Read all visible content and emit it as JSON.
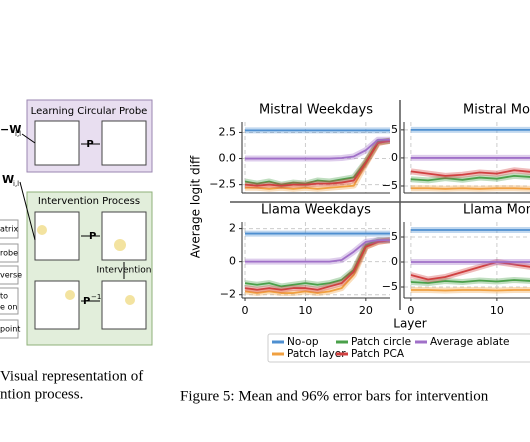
{
  "figure4": {
    "probe_title": "Learning Circular Probe",
    "intervention_title": "Intervention Process",
    "side_labels": [
      "−W",
      "i,l",
      "W",
      "i,l",
      "atrix",
      "robe",
      "verse",
      "to",
      "e on",
      "point"
    ],
    "probe_arrow": "P",
    "project_arrow": "P",
    "inverse_arrow": "P",
    "inverse_sup": "−1",
    "intervention_label": "Intervention",
    "caption": [
      "Visual representation of",
      "ntion process."
    ]
  },
  "figure5": {
    "y_label": "Average logit diff",
    "x_label": "Layer",
    "caption": "Figure 5: Mean and 96% error bars for intervention"
  },
  "chart_data": [
    {
      "type": "line",
      "title": "Mistral Weekdays",
      "x": [
        0,
        2,
        4,
        6,
        8,
        10,
        12,
        14,
        16,
        18,
        20,
        22,
        24
      ],
      "xlim": [
        -0.5,
        24
      ],
      "xticks": [
        0,
        10,
        20
      ],
      "show_xtick_labels": false,
      "ylim": [
        -3.3,
        3.5
      ],
      "yticks": [
        2.5,
        {
          "value": 0,
          "label": "0.0"
        },
        {
          "value": -2.5,
          "label": "−2.5"
        }
      ],
      "grid": true,
      "series": [
        {
          "name": "No-op",
          "color": "#4e8fd0",
          "values": [
            2.7,
            2.7,
            2.7,
            2.7,
            2.7,
            2.7,
            2.7,
            2.7,
            2.7,
            2.7,
            2.7,
            2.7,
            2.7
          ]
        },
        {
          "name": "Patch layer",
          "color": "#f0a040",
          "values": [
            -2.8,
            -2.8,
            -2.9,
            -2.8,
            -2.9,
            -2.8,
            -2.9,
            -2.8,
            -2.7,
            -2.6,
            -0.5,
            1.5,
            1.7
          ]
        },
        {
          "name": "Patch circle",
          "color": "#4aa04a",
          "values": [
            -2.2,
            -2.4,
            -2.2,
            -2.5,
            -2.3,
            -2.4,
            -2.1,
            -2.2,
            -2.0,
            -1.8,
            -0.3,
            1.6,
            1.7
          ]
        },
        {
          "name": "Patch PCA",
          "color": "#d04040",
          "values": [
            -2.5,
            -2.6,
            -2.5,
            -2.6,
            -2.5,
            -2.5,
            -2.4,
            -2.4,
            -2.3,
            -2.1,
            -0.4,
            1.5,
            1.7
          ]
        },
        {
          "name": "Average ablate",
          "color": "#a070c8",
          "values": [
            0,
            0,
            0,
            0,
            0,
            0,
            0,
            0,
            0.05,
            0.2,
            0.8,
            1.8,
            1.8
          ]
        }
      ]
    },
    {
      "type": "line",
      "title": "Mistral Months",
      "x": [
        0,
        2,
        4,
        6,
        8,
        10,
        12,
        14
      ],
      "xlim": [
        -0.8,
        13.85
      ],
      "xticks": [
        0,
        10
      ],
      "show_xtick_labels": false,
      "ylim": [
        -6.25,
        6.4
      ],
      "yticks": [
        5,
        0,
        {
          "value": -5,
          "label": "−5"
        }
      ],
      "grid": true,
      "series": [
        {
          "name": "No-op",
          "color": "#4e8fd0",
          "values": [
            5,
            5,
            5,
            5,
            5,
            5,
            5,
            5
          ]
        },
        {
          "name": "Patch layer",
          "color": "#f0a040",
          "values": [
            -5.4,
            -5.4,
            -5.5,
            -5.4,
            -5.5,
            -5.4,
            -5.4,
            -5.5
          ]
        },
        {
          "name": "Patch circle",
          "color": "#4aa04a",
          "values": [
            -3.8,
            -4,
            -3.6,
            -3.9,
            -3.5,
            -3.7,
            -3.2,
            -3.4
          ]
        },
        {
          "name": "Patch PCA",
          "color": "#d04040",
          "values": [
            -2.4,
            -2.8,
            -3.2,
            -3,
            -2.6,
            -2.8,
            -2.2,
            -2.5
          ]
        },
        {
          "name": "Average ablate",
          "color": "#a070c8",
          "values": [
            0,
            0,
            0,
            0,
            0,
            0,
            0,
            0
          ]
        }
      ]
    },
    {
      "type": "line",
      "title": "Llama Weekdays",
      "x": [
        0,
        2,
        4,
        6,
        8,
        10,
        12,
        14,
        16,
        18,
        20,
        22,
        24
      ],
      "xlim": [
        -0.5,
        24
      ],
      "xticks": [
        0,
        10,
        20
      ],
      "show_xtick_labels": true,
      "ylim": [
        -2.2,
        2.4
      ],
      "yticks": [
        2,
        0,
        {
          "value": -2,
          "label": "−2"
        }
      ],
      "grid": true,
      "series": [
        {
          "name": "No-op",
          "color": "#4e8fd0",
          "values": [
            1.7,
            1.7,
            1.7,
            1.7,
            1.7,
            1.7,
            1.7,
            1.7,
            1.7,
            1.7,
            1.7,
            1.7,
            1.7
          ]
        },
        {
          "name": "Patch layer",
          "color": "#f0a040",
          "values": [
            -1.8,
            -1.9,
            -1.8,
            -1.9,
            -1.9,
            -1.8,
            -1.9,
            -1.8,
            -1.6,
            -0.8,
            0.9,
            1.2,
            1.3
          ]
        },
        {
          "name": "Patch circle",
          "color": "#4aa04a",
          "values": [
            -1.3,
            -1.4,
            -1.3,
            -1.5,
            -1.4,
            -1.3,
            -1.4,
            -1.3,
            -1.1,
            -0.5,
            1.0,
            1.3,
            1.3
          ]
        },
        {
          "name": "Patch PCA",
          "color": "#d04040",
          "values": [
            -1.6,
            -1.7,
            -1.6,
            -1.7,
            -1.6,
            -1.6,
            -1.7,
            -1.5,
            -1.3,
            -0.6,
            0.9,
            1.2,
            1.3
          ]
        },
        {
          "name": "Average ablate",
          "color": "#a070c8",
          "values": [
            0,
            0,
            0,
            0,
            0,
            0,
            0,
            0,
            0.1,
            0.6,
            1.2,
            1.3,
            1.3
          ]
        }
      ]
    },
    {
      "type": "line",
      "title": "Llama Months",
      "x": [
        0,
        2,
        4,
        6,
        8,
        10,
        12,
        14
      ],
      "xlim": [
        -0.8,
        13.85
      ],
      "xticks": [
        0,
        10
      ],
      "show_xtick_labels": true,
      "ylim": [
        -7.2,
        8
      ],
      "yticks": [
        5,
        0,
        {
          "value": -5,
          "label": "−5"
        }
      ],
      "grid": true,
      "series": [
        {
          "name": "No-op",
          "color": "#4e8fd0",
          "values": [
            6.4,
            6.4,
            6.4,
            6.4,
            6.4,
            6.4,
            6.4,
            6.4
          ]
        },
        {
          "name": "Patch layer",
          "color": "#f0a040",
          "values": [
            -5.6,
            -5.6,
            -5.7,
            -5.6,
            -5.6,
            -5.7,
            -5.6,
            -5.6
          ]
        },
        {
          "name": "Patch circle",
          "color": "#4aa04a",
          "values": [
            -4,
            -4.2,
            -3.8,
            -4,
            -3.7,
            -3.9,
            -3.6,
            -3.8
          ]
        },
        {
          "name": "Patch PCA",
          "color": "#d04040",
          "values": [
            -2.6,
            -3.5,
            -3,
            -2,
            -1,
            0,
            -0.5,
            -1
          ]
        },
        {
          "name": "Average ablate",
          "color": "#a070c8",
          "values": [
            0,
            0,
            0,
            0,
            0,
            0,
            0,
            0
          ]
        }
      ]
    }
  ]
}
